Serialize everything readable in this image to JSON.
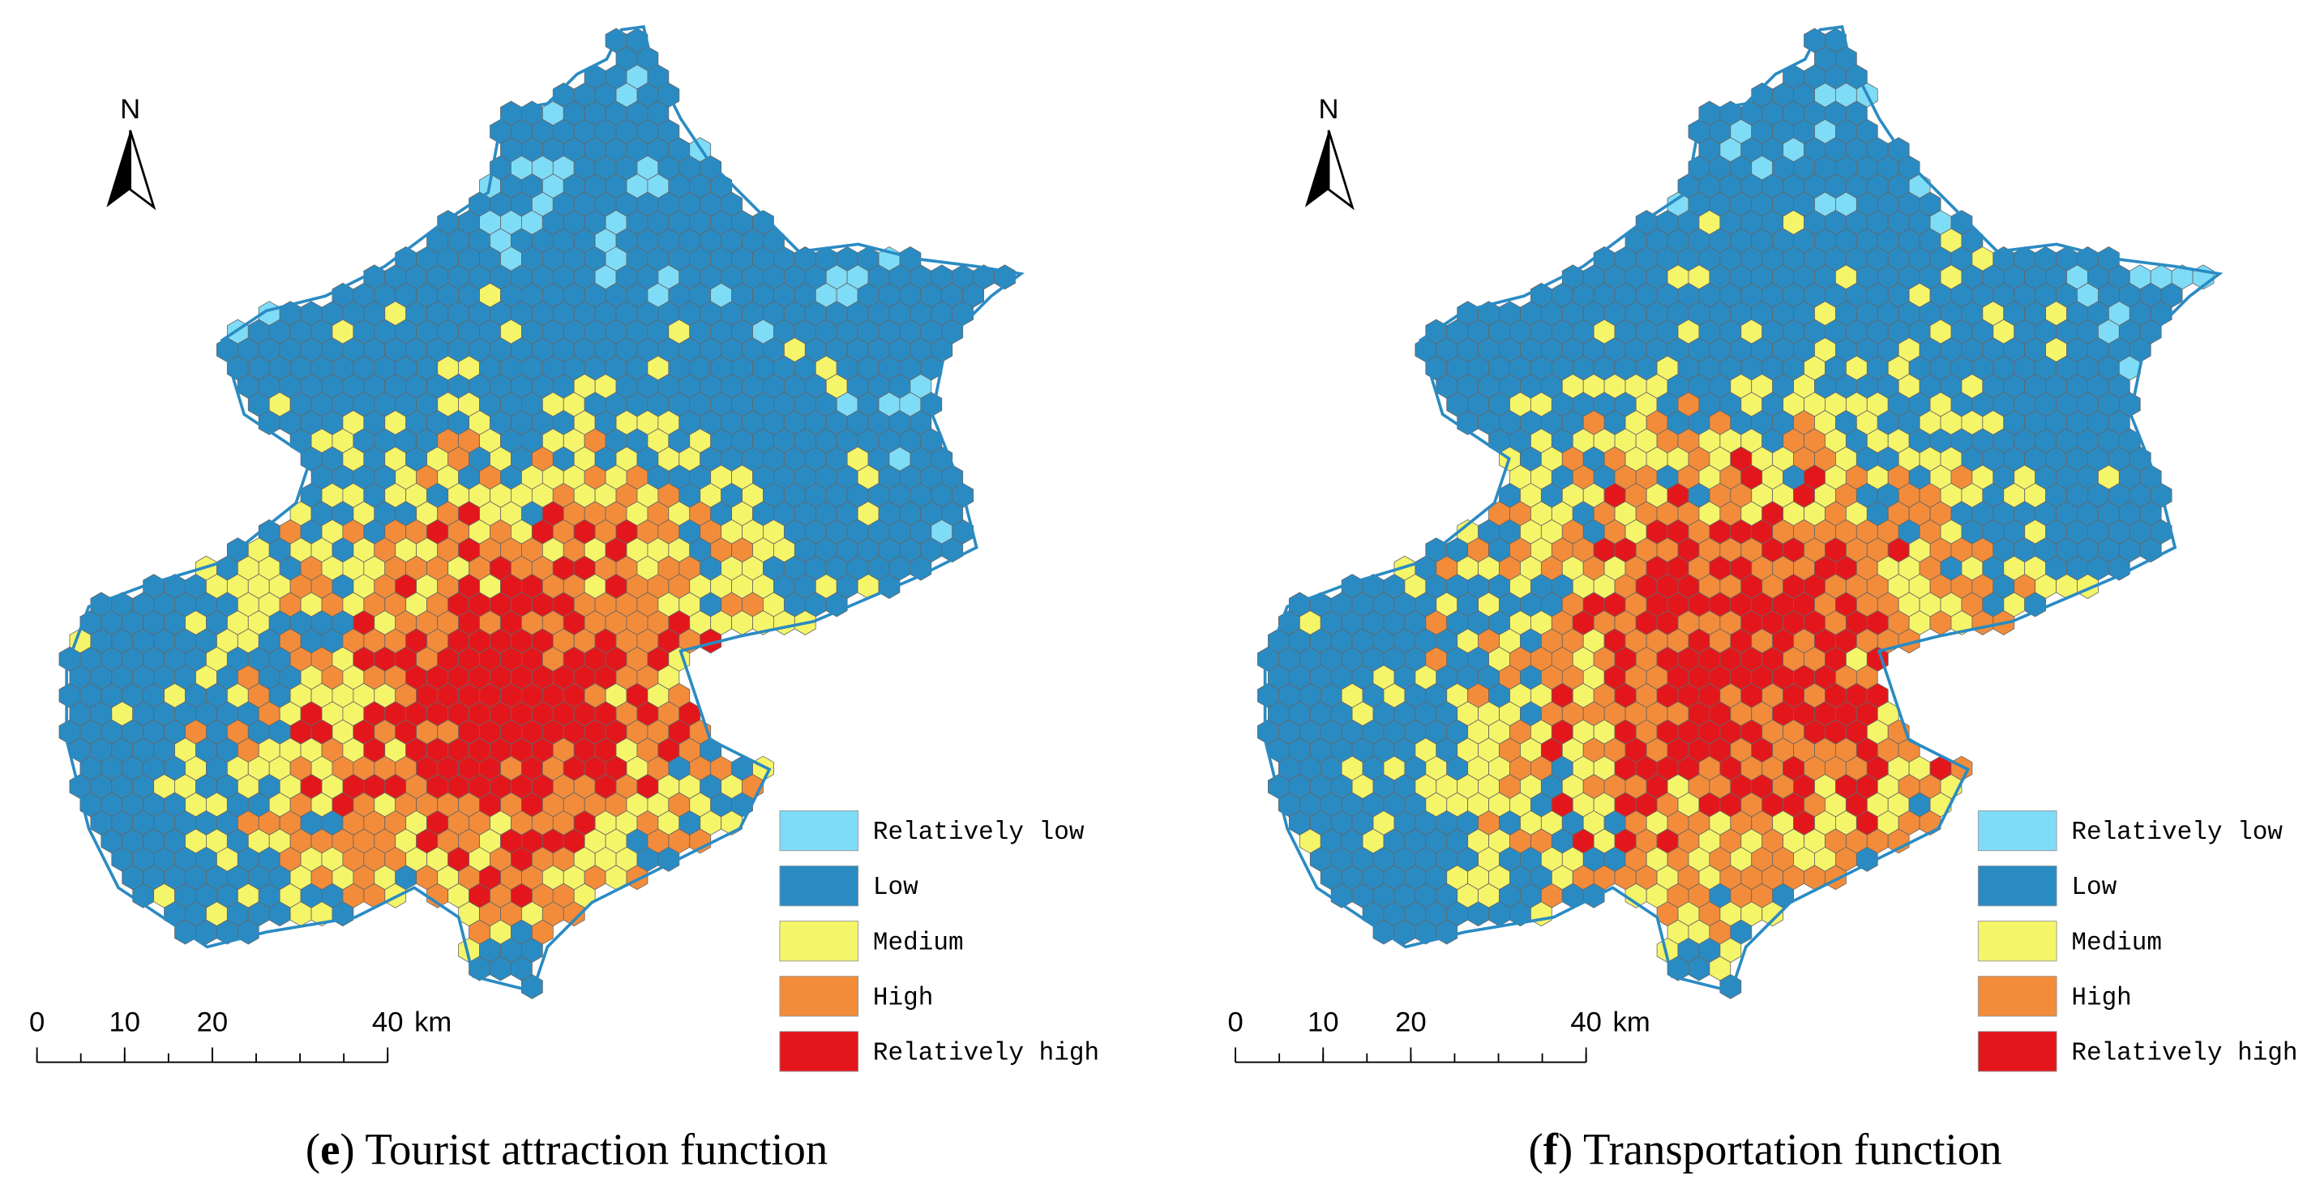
{
  "panels": [
    {
      "north": "N",
      "scale": {
        "ticks": [
          0,
          10,
          20,
          40
        ],
        "unit": "km"
      },
      "legend": [
        {
          "label": "Relatively low",
          "color": "#7fdcf7"
        },
        {
          "label": "Low",
          "color": "#2a8bc3"
        },
        {
          "label": "Medium",
          "color": "#f5f56a"
        },
        {
          "label": "High",
          "color": "#f28c3a"
        },
        {
          "label": "Relatively high",
          "color": "#e3171b"
        }
      ],
      "caption": {
        "prefix": "(",
        "letter": "e",
        "text": ") Tourist attraction function"
      }
    },
    {
      "north": "N",
      "scale": {
        "ticks": [
          0,
          10,
          20,
          40
        ],
        "unit": "km"
      },
      "legend": [
        {
          "label": "Relatively low",
          "color": "#7fdcf7"
        },
        {
          "label": "Low",
          "color": "#2a8bc3"
        },
        {
          "label": "Medium",
          "color": "#f5f56a"
        },
        {
          "label": "High",
          "color": "#f28c3a"
        },
        {
          "label": "Relatively high",
          "color": "#e3171b"
        }
      ],
      "caption": {
        "prefix": "(",
        "letter": "f",
        "text": ") Transportation function"
      }
    }
  ]
}
